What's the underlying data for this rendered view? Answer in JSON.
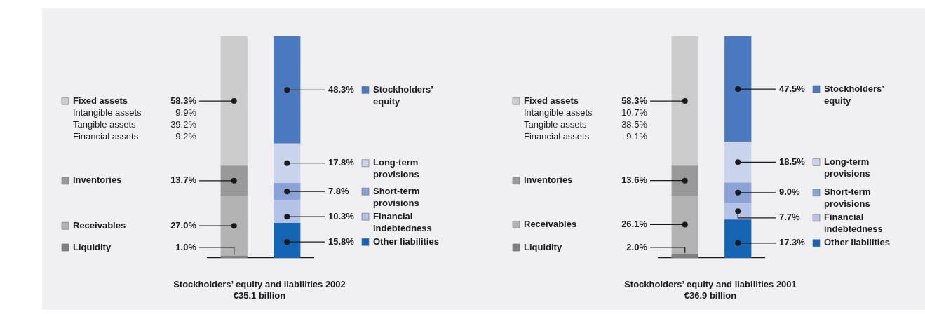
{
  "chart_data": [
    {
      "type": "bar",
      "stacked": true,
      "legend": "left",
      "title": "Stockholders’ equity and liabilities 2002",
      "subtitle": "€35.1 billion",
      "categories": [
        null,
        null
      ],
      "series": [
        {
          "name": "Liquidity",
          "color": "#808080",
          "values": [
            1.0,
            null
          ],
          "value_labels": [
            "1.0%",
            null
          ]
        },
        {
          "name": "Receivables",
          "color": "#b3b3b3",
          "values": [
            27.0,
            null
          ],
          "value_labels": [
            "27.0%",
            null
          ]
        },
        {
          "name": "Inventories",
          "color": "#999999",
          "values": [
            13.7,
            null
          ],
          "value_labels": [
            "13.7%",
            null
          ]
        },
        {
          "name": "Fixed assets",
          "color": "#cccccc",
          "values": [
            58.3,
            null
          ],
          "value_labels": [
            "58.3%",
            null
          ]
        },
        {
          "name": "Other liabilities",
          "color": "#1565b4",
          "values": [
            null,
            15.8
          ],
          "value_labels": [
            null,
            "15.8%"
          ]
        },
        {
          "name": "Financial indebtedness",
          "color": "#b3c2e6",
          "values": [
            null,
            10.3
          ],
          "value_labels": [
            null,
            "10.3%"
          ]
        },
        {
          "name": "Short-term provisions",
          "color": "#8aa2d6",
          "values": [
            null,
            7.8
          ],
          "value_labels": [
            null,
            "7.8%"
          ]
        },
        {
          "name": "Long-term provisions",
          "color": "#c9d3ec",
          "values": [
            null,
            17.8
          ],
          "value_labels": [
            null,
            "17.8%"
          ]
        },
        {
          "name": "Stockholders’ equity",
          "color": "#4a79c0",
          "values": [
            null,
            48.3
          ],
          "value_labels": [
            null,
            "48.3%"
          ]
        }
      ],
      "annotations": [
        "Intangible assets 9.9%",
        "Tangible assets 39.2%",
        "Financial assets 9.2%"
      ]
    },
    {
      "type": "bar",
      "stacked": true,
      "legend": "left",
      "title": "Stockholders’ equity and liabilities 2001",
      "subtitle": "€36.9 billion",
      "categories": [
        null,
        null
      ],
      "series": [
        {
          "name": "Liquidity",
          "color": "#808080",
          "values": [
            2.0,
            null
          ],
          "value_labels": [
            "2.0%",
            null
          ]
        },
        {
          "name": "Receivables",
          "color": "#b3b3b3",
          "values": [
            26.1,
            null
          ],
          "value_labels": [
            "26.1%",
            null
          ]
        },
        {
          "name": "Inventories",
          "color": "#999999",
          "values": [
            13.6,
            null
          ],
          "value_labels": [
            "13.6%",
            null
          ]
        },
        {
          "name": "Fixed assets",
          "color": "#cccccc",
          "values": [
            58.3,
            null
          ],
          "value_labels": [
            "58.3%",
            null
          ]
        },
        {
          "name": "Other liabilities",
          "color": "#1565b4",
          "values": [
            null,
            17.3
          ],
          "value_labels": [
            null,
            "17.3%"
          ]
        },
        {
          "name": "Financial indebtedness",
          "color": "#b3c2e6",
          "values": [
            null,
            7.7
          ],
          "value_labels": [
            null,
            "7.7%"
          ]
        },
        {
          "name": "Short-term provisions",
          "color": "#8aa2d6",
          "values": [
            null,
            9.0
          ],
          "value_labels": [
            null,
            "9.0%"
          ]
        },
        {
          "name": "Long-term provisions",
          "color": "#c9d3ec",
          "values": [
            null,
            18.5
          ],
          "value_labels": [
            null,
            "18.5%"
          ]
        },
        {
          "name": "Stockholders’ equity",
          "color": "#4a79c0",
          "values": [
            null,
            47.5
          ],
          "value_labels": [
            null,
            "47.5%"
          ]
        }
      ],
      "annotations": [
        "Intangible assets 10.7%",
        "Tangible assets 38.5%",
        "Financial assets 9.1%"
      ]
    }
  ]
}
